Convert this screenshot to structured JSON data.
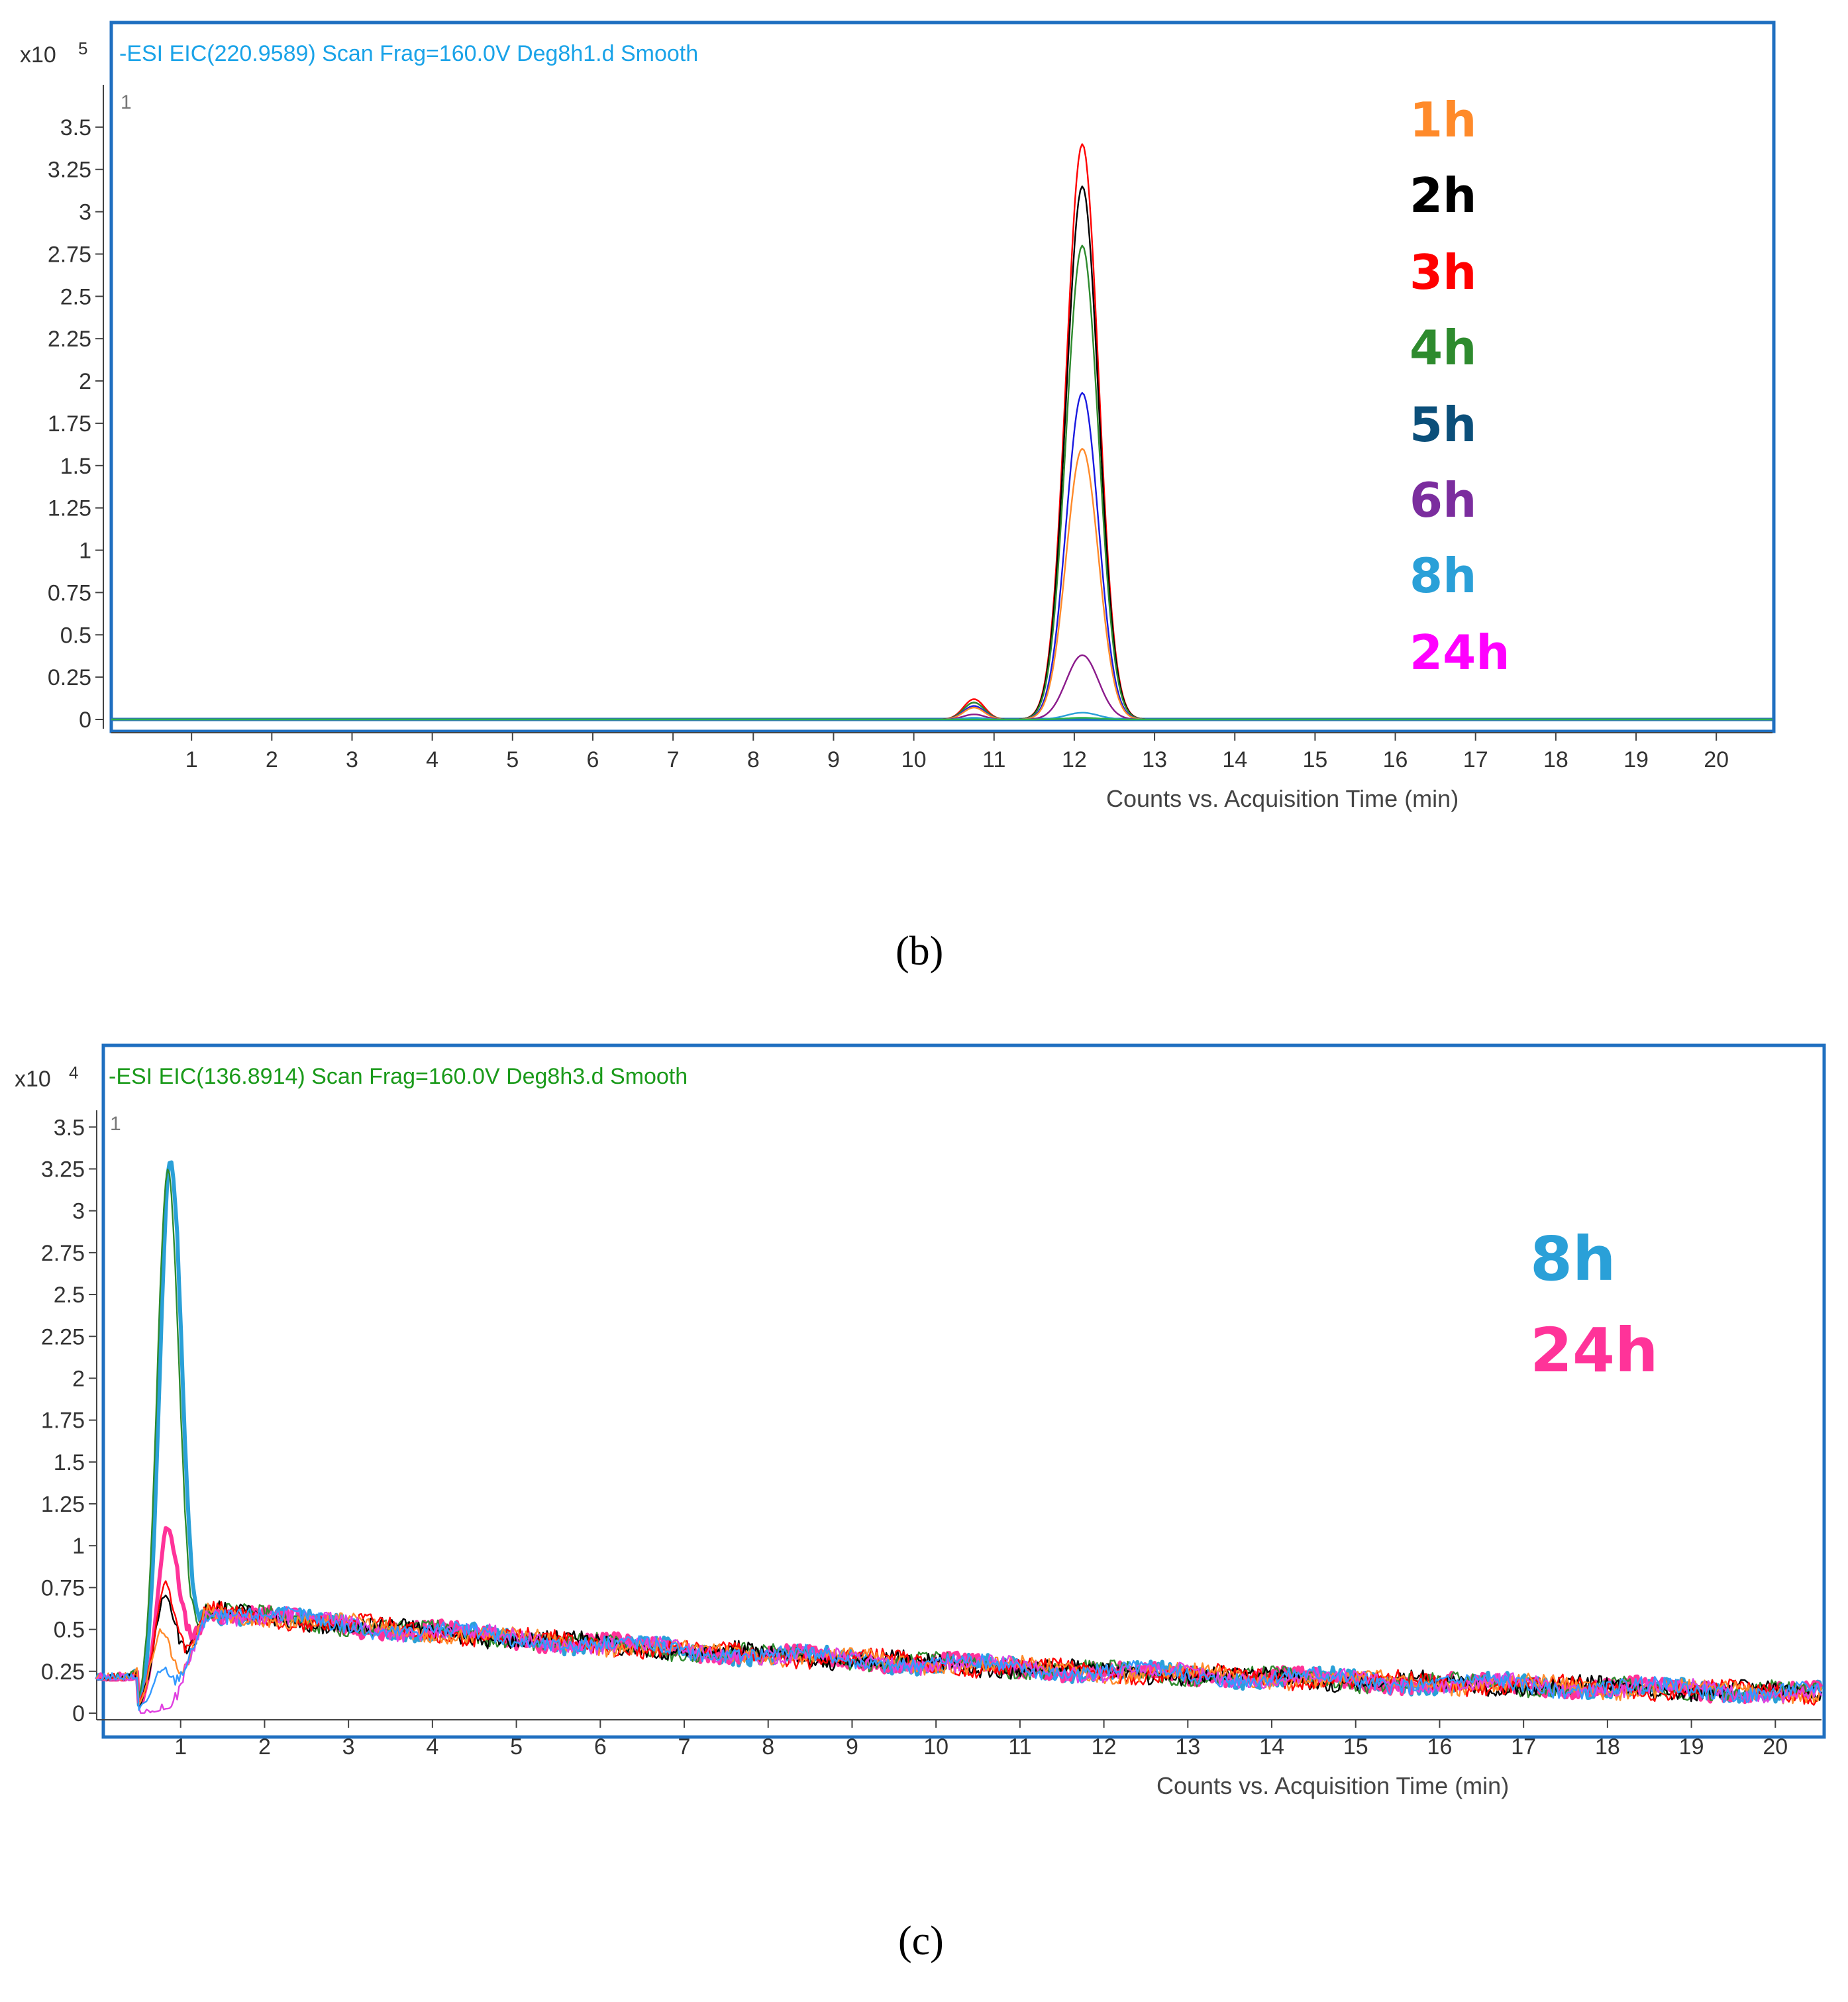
{
  "chart_data": [
    {
      "type": "line",
      "panel_label": "(b)",
      "title": "-ESI EIC(220.9589) Scan Frag=160.0V Deg8h1.d  Smooth",
      "title_color": "#1aa3e8",
      "plot_index": "1",
      "y_exponent_base": "x10",
      "y_exponent": "5",
      "xlabel": "Counts vs. Acquisition Time (min)",
      "ylabel": "",
      "xlim": [
        0,
        20.7
      ],
      "ylim": [
        0,
        3.75
      ],
      "x_ticks": [
        "1",
        "2",
        "3",
        "4",
        "5",
        "6",
        "7",
        "8",
        "9",
        "10",
        "11",
        "12",
        "13",
        "14",
        "15",
        "16",
        "17",
        "18",
        "19",
        "20"
      ],
      "y_ticks": [
        "0",
        "0.25",
        "0.5",
        "0.75",
        "1",
        "1.25",
        "1.5",
        "1.75",
        "2",
        "2.25",
        "2.5",
        "2.75",
        "3",
        "3.25",
        "3.5"
      ],
      "x_tick_values": [
        1,
        2,
        3,
        4,
        5,
        6,
        7,
        8,
        9,
        10,
        11,
        12,
        13,
        14,
        15,
        16,
        17,
        18,
        19,
        20
      ],
      "y_tick_values": [
        0,
        0.25,
        0.5,
        0.75,
        1,
        1.25,
        1.5,
        1.75,
        2,
        2.25,
        2.5,
        2.75,
        3,
        3.25,
        3.5
      ],
      "legend": [
        {
          "label": "1h",
          "color": "#ff8a2a"
        },
        {
          "label": "2h",
          "color": "#000000"
        },
        {
          "label": "3h",
          "color": "#ff0000"
        },
        {
          "label": "4h",
          "color": "#2e8b2e"
        },
        {
          "label": "5h",
          "color": "#0b4f7a"
        },
        {
          "label": "6h",
          "color": "#7b2d9e"
        },
        {
          "label": "8h",
          "color": "#2aa0d8"
        },
        {
          "label": "24h",
          "color": "#ff00ff"
        }
      ],
      "series": [
        {
          "name": "3h",
          "color": "#ff0000",
          "peak_rt": 12.1,
          "peak": 3.4,
          "minor_rt": 10.75,
          "minor": 0.12
        },
        {
          "name": "2h",
          "color": "#000000",
          "peak_rt": 12.1,
          "peak": 3.15,
          "minor_rt": 10.75,
          "minor": 0.1
        },
        {
          "name": "4h",
          "color": "#2e8b2e",
          "peak_rt": 12.1,
          "peak": 2.8,
          "minor_rt": 10.75,
          "minor": 0.1
        },
        {
          "name": "5h",
          "color": "#1a1ae0",
          "peak_rt": 12.1,
          "peak": 1.93,
          "minor_rt": 10.75,
          "minor": 0.08
        },
        {
          "name": "1h",
          "color": "#ff8a2a",
          "peak_rt": 12.1,
          "peak": 1.6,
          "minor_rt": 10.75,
          "minor": 0.07
        },
        {
          "name": "6h",
          "color": "#8b1a8b",
          "peak_rt": 12.1,
          "peak": 0.38,
          "minor_rt": 10.75,
          "minor": 0.03
        },
        {
          "name": "8h",
          "color": "#2aa0d8",
          "peak_rt": 12.1,
          "peak": 0.04,
          "minor_rt": 10.75,
          "minor": 0.01
        },
        {
          "name": "24h",
          "color": "#2bb24c",
          "peak_rt": 12.1,
          "peak": 0.01,
          "minor_rt": 10.75,
          "minor": 0.0
        }
      ]
    },
    {
      "type": "line",
      "panel_label": "(c)",
      "title": "-ESI EIC(136.8914) Scan Frag=160.0V Deg8h3.d  Smooth",
      "title_color": "#1a9a1a",
      "plot_index": "1",
      "y_exponent_base": "x10",
      "y_exponent": "4",
      "xlabel": "Counts vs. Acquisition Time (min)",
      "ylabel": "",
      "xlim": [
        0,
        20.55
      ],
      "ylim": [
        0,
        3.6
      ],
      "x_ticks": [
        "1",
        "2",
        "3",
        "4",
        "5",
        "6",
        "7",
        "8",
        "9",
        "10",
        "11",
        "12",
        "13",
        "14",
        "15",
        "16",
        "17",
        "18",
        "19",
        "20"
      ],
      "y_ticks": [
        "0",
        "0.25",
        "0.5",
        "0.75",
        "1",
        "1.25",
        "1.5",
        "1.75",
        "2",
        "2.25",
        "2.5",
        "2.75",
        "3",
        "3.25",
        "3.5"
      ],
      "x_tick_values": [
        1,
        2,
        3,
        4,
        5,
        6,
        7,
        8,
        9,
        10,
        11,
        12,
        13,
        14,
        15,
        16,
        17,
        18,
        19,
        20
      ],
      "y_tick_values": [
        0,
        0.25,
        0.5,
        0.75,
        1,
        1.25,
        1.5,
        1.75,
        2,
        2.25,
        2.5,
        2.75,
        3,
        3.25,
        3.5
      ],
      "legend": [
        {
          "label": "8h",
          "color": "#2aa0d8"
        },
        {
          "label": "24h",
          "color": "#ff3399"
        }
      ],
      "series": [
        {
          "name": "8h",
          "color": "#2aa0d8",
          "peak_rt": 0.88,
          "peak": 3.3,
          "bold": true
        },
        {
          "name": "24h",
          "color": "#ff3399",
          "peak_rt": 0.85,
          "peak": 1.1,
          "bold": true
        },
        {
          "name": "green",
          "color": "#2e8b2e",
          "peak_rt": 0.85,
          "peak": 3.25
        },
        {
          "name": "black",
          "color": "#000000",
          "peak_rt": 0.82,
          "peak": 0.7
        },
        {
          "name": "red",
          "color": "#ff0000",
          "peak_rt": 0.82,
          "peak": 0.76
        },
        {
          "name": "orange",
          "color": "#ff8a2a",
          "peak_rt": 0.78,
          "peak": 0.48
        },
        {
          "name": "magenta",
          "color": "#e040e0",
          "peak_rt": 0.9,
          "peak": 0.03
        },
        {
          "name": "blue",
          "color": "#3399ff",
          "peak_rt": 0.8,
          "peak": 0.25
        }
      ]
    }
  ]
}
